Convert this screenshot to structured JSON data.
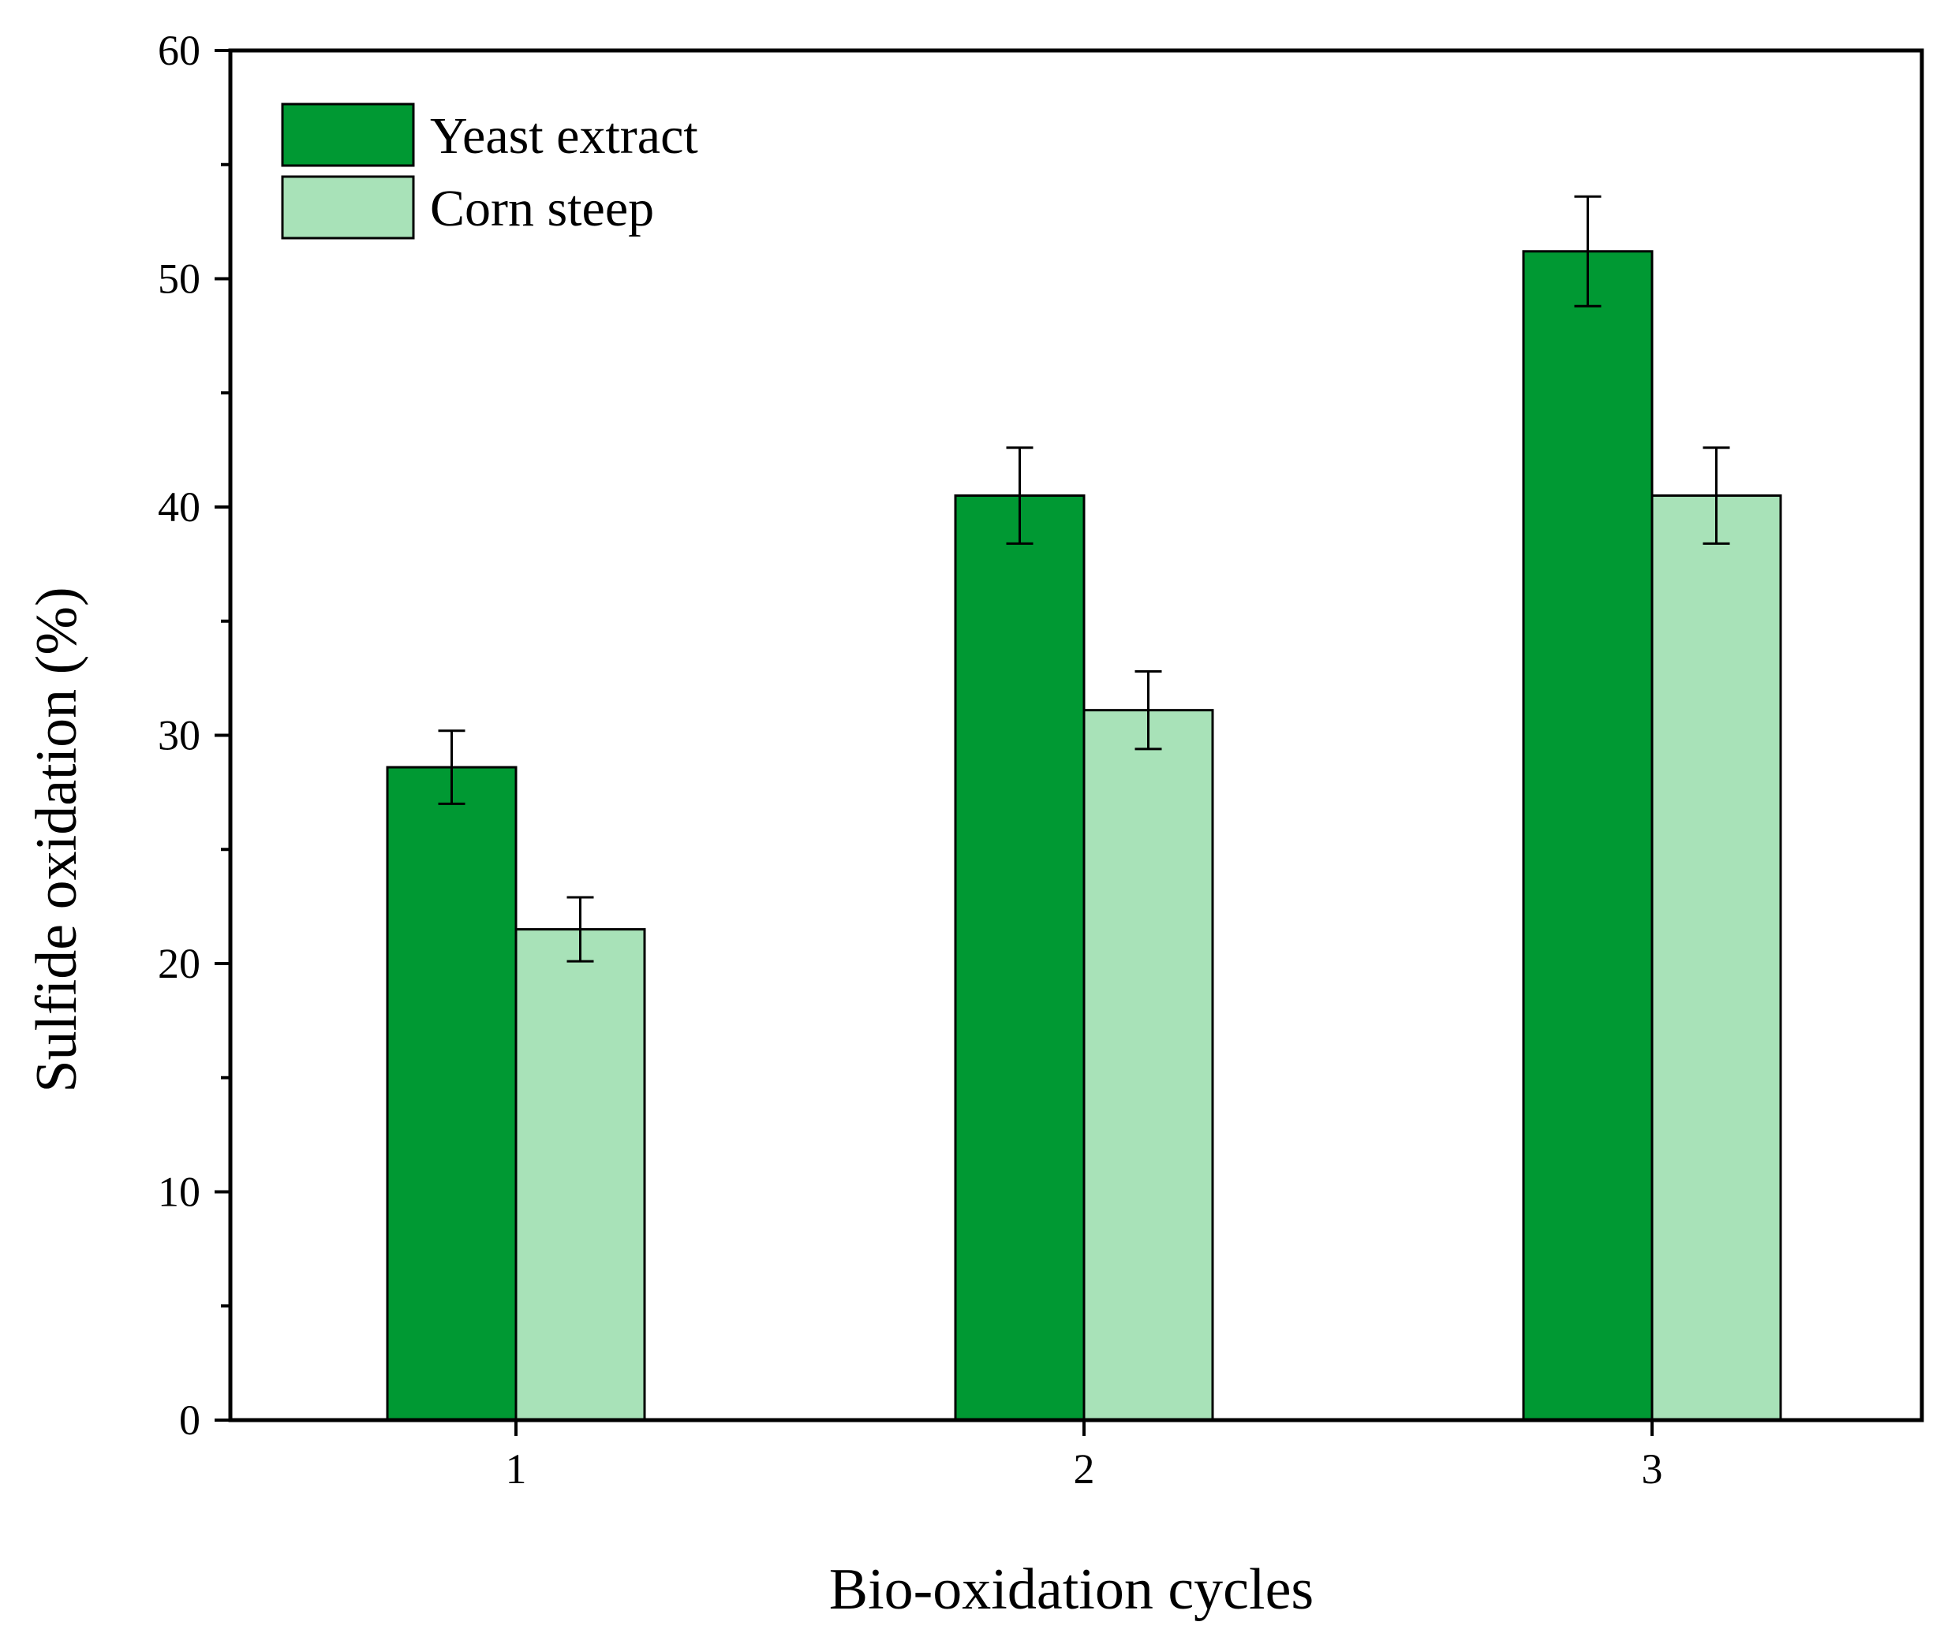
{
  "chart_data": {
    "type": "bar",
    "title": "",
    "xlabel": "Bio-oxidation cycles",
    "ylabel": "Sulfide oxidation (%)",
    "categories": [
      "1",
      "2",
      "3"
    ],
    "ylim": [
      0,
      60
    ],
    "yticks": [
      0,
      10,
      20,
      30,
      40,
      50,
      60
    ],
    "ytick_labels": [
      "0",
      "10",
      "20",
      "30",
      "40",
      "50",
      "60"
    ],
    "grid": false,
    "legend_position": "top-left",
    "series": [
      {
        "name": "Yeast extract",
        "color": "#009933",
        "values": [
          28.6,
          40.5,
          51.2
        ],
        "errors": [
          1.6,
          2.1,
          2.4
        ]
      },
      {
        "name": "Corn steep",
        "color": "#a8e2b8",
        "values": [
          21.5,
          31.1,
          40.5
        ],
        "errors": [
          1.4,
          1.7,
          2.1
        ]
      }
    ]
  }
}
